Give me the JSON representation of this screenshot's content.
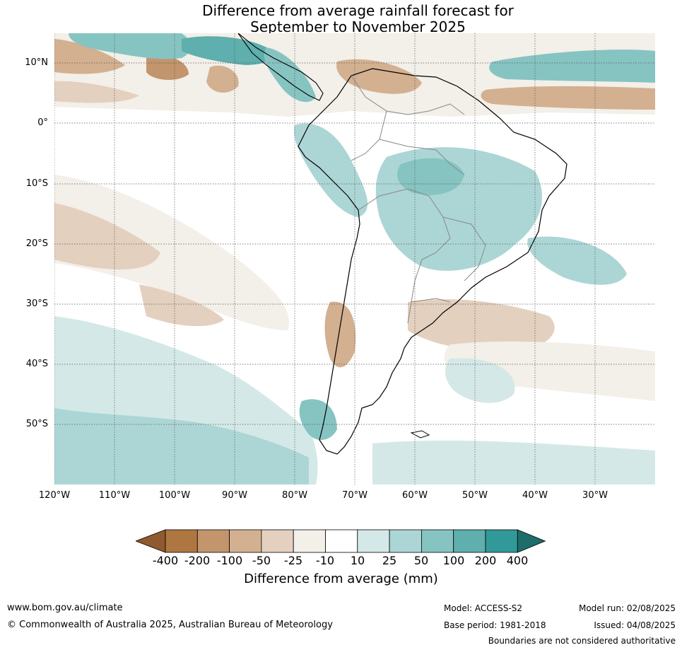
{
  "title_line1": "Difference from average rainfall forecast for",
  "title_line2": "September to November 2025",
  "latitude_labels": [
    "10°N",
    "0°",
    "10°S",
    "20°S",
    "30°S",
    "40°S",
    "50°S"
  ],
  "longitude_labels": [
    "120°W",
    "110°W",
    "100°W",
    "90°W",
    "80°W",
    "70°W",
    "60°W",
    "50°W",
    "40°W",
    "30°W"
  ],
  "colorbar": {
    "ticks": [
      "-400",
      "-200",
      "-100",
      "-50",
      "-25",
      "-10",
      "10",
      "25",
      "50",
      "100",
      "200",
      "400"
    ],
    "colors": [
      "#8f5a2e",
      "#ae7741",
      "#c3956c",
      "#d3b090",
      "#e4d0bf",
      "#f3efe9",
      "#ffffff",
      "#d4e9e7",
      "#acd6d5",
      "#86c4c2",
      "#5eafad",
      "#319997",
      "#1e6d6b"
    ],
    "label": "Difference from average (mm)"
  },
  "footer": {
    "website": "www.bom.gov.au/climate",
    "copyright": "© Commonwealth of Australia 2025, Australian Bureau of Meteorology",
    "model": "Model: ACCESS-S2",
    "base_period": "Base period: 1981-2018",
    "model_run": "Model run: 02/08/2025",
    "issued": "Issued: 04/08/2025",
    "disclaimer": "Boundaries are not considered authoritative"
  }
}
